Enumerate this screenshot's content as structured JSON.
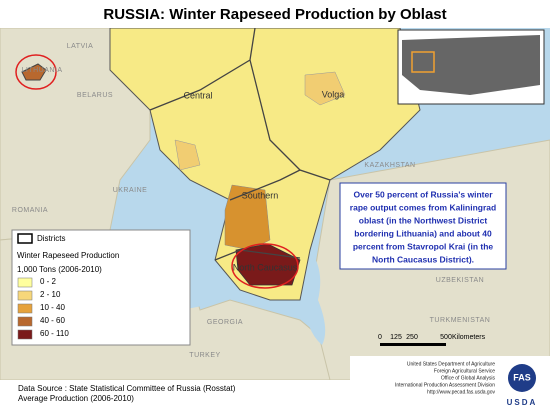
{
  "title": "RUSSIA:  Winter Rapeseed Production by Oblast",
  "countries": [
    "LATVIA",
    "LITHUANIA",
    "BELARUS",
    "UKRAINE",
    "ROMANIA",
    "GEORGIA",
    "TURKEY",
    "KAZAKHSTAN",
    "UZBEKISTAN",
    "TURKMENISTAN"
  ],
  "districts": [
    "Central",
    "Volga",
    "Southern",
    "North Caucasus"
  ],
  "legend": {
    "districts_label": "Districts",
    "title": "Winter Rapeseed Production",
    "units": "1,000 Tons (2006-2010)",
    "classes": [
      {
        "label": "0 - 2",
        "color": "#ffff9e"
      },
      {
        "label": "2 - 10",
        "color": "#f7d77a"
      },
      {
        "label": "10 - 40",
        "color": "#e6a23c"
      },
      {
        "label": "40 - 60",
        "color": "#b8682e"
      },
      {
        "label": "60 - 110",
        "color": "#7a1a1a"
      }
    ]
  },
  "annotation": [
    "Over 50 percent of Russia's winter",
    "rape output comes from Kaliningrad",
    "oblast (in the Northwest District",
    "bordering Lithuania) and about 40",
    "percent from Stavropol Krai (in the",
    "North Caucasus District)."
  ],
  "scale": {
    "ticks": [
      "0",
      "125",
      "250",
      "500"
    ],
    "unit": "Kilometers"
  },
  "source": [
    "Data Source : State Statistical Committee of Russia (Rosstat)",
    "Average Production (2006-2010)"
  ],
  "agency": [
    "United States Department of Agriculture",
    "Foreign Agricultural Service",
    "Office of Global Analysis",
    "International Production Assessment Division",
    "http://www.pecad.fas.usda.gov"
  ],
  "logo": [
    "FAS",
    "USDA"
  ]
}
